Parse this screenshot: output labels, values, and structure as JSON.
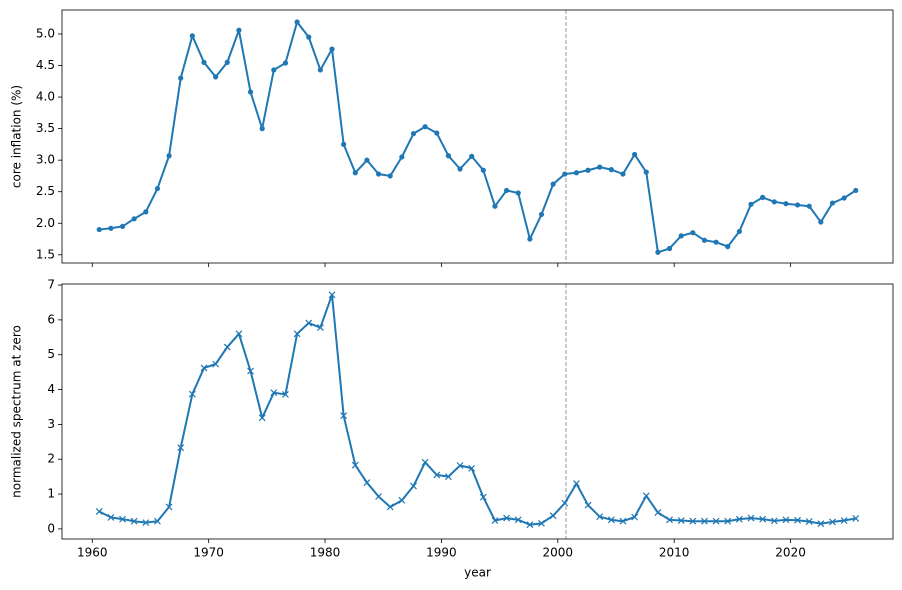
{
  "chart_data": [
    {
      "type": "line",
      "ylabel": "core inflation (%)",
      "color": "#1f77b4",
      "marker": "o",
      "vline": 2000.7,
      "show_xticklabels": false,
      "x": [
        1960.6,
        1961.6,
        1962.6,
        1963.6,
        1964.6,
        1965.6,
        1966.6,
        1967.6,
        1968.6,
        1969.6,
        1970.6,
        1971.6,
        1972.6,
        1973.6,
        1974.6,
        1975.6,
        1976.6,
        1977.6,
        1978.6,
        1979.6,
        1980.6,
        1981.6,
        1982.6,
        1983.6,
        1984.6,
        1985.6,
        1986.6,
        1987.6,
        1988.6,
        1989.6,
        1990.6,
        1991.6,
        1992.6,
        1993.6,
        1994.6,
        1995.6,
        1996.6,
        1997.6,
        1998.6,
        1999.6,
        2000.6,
        2001.6,
        2002.6,
        2003.6,
        2004.6,
        2005.6,
        2006.6,
        2007.6,
        2008.6,
        2009.6,
        2010.6,
        2011.6,
        2012.6,
        2013.6,
        2014.6,
        2015.6,
        2016.6,
        2017.6,
        2018.6,
        2019.6,
        2020.6,
        2021.6,
        2022.6,
        2023.6,
        2024.6,
        2025.6
      ],
      "values": [
        1.9,
        1.92,
        1.95,
        2.07,
        2.18,
        2.55,
        3.07,
        4.3,
        4.97,
        4.55,
        4.32,
        4.55,
        5.06,
        4.08,
        3.5,
        4.43,
        4.54,
        5.19,
        4.95,
        4.43,
        4.76,
        3.25,
        2.8,
        3.0,
        2.78,
        2.75,
        3.05,
        3.42,
        3.53,
        3.43,
        3.07,
        2.86,
        3.06,
        2.84,
        2.27,
        2.52,
        2.48,
        1.75,
        2.14,
        2.62,
        2.78,
        2.8,
        2.84,
        2.89,
        2.85,
        2.78,
        3.09,
        2.81,
        1.54,
        1.6,
        1.8,
        1.85,
        1.73,
        1.7,
        1.63,
        1.87,
        2.3,
        2.41,
        2.34,
        2.31,
        2.29,
        2.27,
        2.02,
        2.32,
        2.4,
        2.52
      ],
      "xlim": [
        1957.4,
        2028.8
      ],
      "xticks": [
        1960,
        1970,
        1980,
        1990,
        2000,
        2010,
        2020
      ],
      "ylim": [
        1.37,
        5.38
      ],
      "yticks": [
        {
          "value": 1.5,
          "label": "1.5"
        },
        {
          "value": 2,
          "label": "2.0"
        },
        {
          "value": 2.5,
          "label": "2.5"
        },
        {
          "value": 3,
          "label": "3.0"
        },
        {
          "value": 3.5,
          "label": "3.5"
        },
        {
          "value": 4,
          "label": "4.0"
        },
        {
          "value": 4.5,
          "label": "4.5"
        },
        {
          "value": 5,
          "label": "5.0"
        }
      ]
    },
    {
      "type": "line",
      "ylabel": "normalized spectrum at zero",
      "xlabel": "year",
      "color": "#1f77b4",
      "marker": "x",
      "vline": 2000.7,
      "show_xticklabels": true,
      "x": [
        1960.6,
        1961.6,
        1962.6,
        1963.6,
        1964.6,
        1965.6,
        1966.6,
        1967.6,
        1968.6,
        1969.6,
        1970.6,
        1971.6,
        1972.6,
        1973.6,
        1974.6,
        1975.6,
        1976.6,
        1977.6,
        1978.6,
        1979.6,
        1980.6,
        1981.6,
        1982.6,
        1983.6,
        1984.6,
        1985.6,
        1986.6,
        1987.6,
        1988.6,
        1989.6,
        1990.6,
        1991.6,
        1992.6,
        1993.6,
        1994.6,
        1995.6,
        1996.6,
        1997.6,
        1998.6,
        1999.6,
        2000.6,
        2001.6,
        2002.6,
        2003.6,
        2004.6,
        2005.6,
        2006.6,
        2007.6,
        2008.6,
        2009.6,
        2010.6,
        2011.6,
        2012.6,
        2013.6,
        2014.6,
        2015.6,
        2016.6,
        2017.6,
        2018.6,
        2019.6,
        2020.6,
        2021.6,
        2022.6,
        2023.6,
        2024.6,
        2025.6
      ],
      "values": [
        0.5,
        0.33,
        0.28,
        0.22,
        0.18,
        0.22,
        0.63,
        2.33,
        3.87,
        4.62,
        4.73,
        5.22,
        5.6,
        4.53,
        3.19,
        3.91,
        3.86,
        5.6,
        5.91,
        5.78,
        6.72,
        3.25,
        1.83,
        1.33,
        0.93,
        0.63,
        0.82,
        1.23,
        1.91,
        1.55,
        1.5,
        1.82,
        1.74,
        0.91,
        0.24,
        0.31,
        0.26,
        0.12,
        0.16,
        0.38,
        0.74,
        1.3,
        0.68,
        0.35,
        0.26,
        0.22,
        0.34,
        0.95,
        0.47,
        0.26,
        0.24,
        0.22,
        0.22,
        0.22,
        0.22,
        0.28,
        0.31,
        0.28,
        0.23,
        0.26,
        0.25,
        0.21,
        0.15,
        0.2,
        0.24,
        0.3
      ],
      "xlim": [
        1957.4,
        2028.8
      ],
      "xticks": [
        1960,
        1970,
        1980,
        1990,
        2000,
        2010,
        2020
      ],
      "ylim": [
        -0.29,
        7.03
      ],
      "yticks": [
        0,
        1,
        2,
        3,
        4,
        5,
        6,
        7
      ]
    }
  ]
}
